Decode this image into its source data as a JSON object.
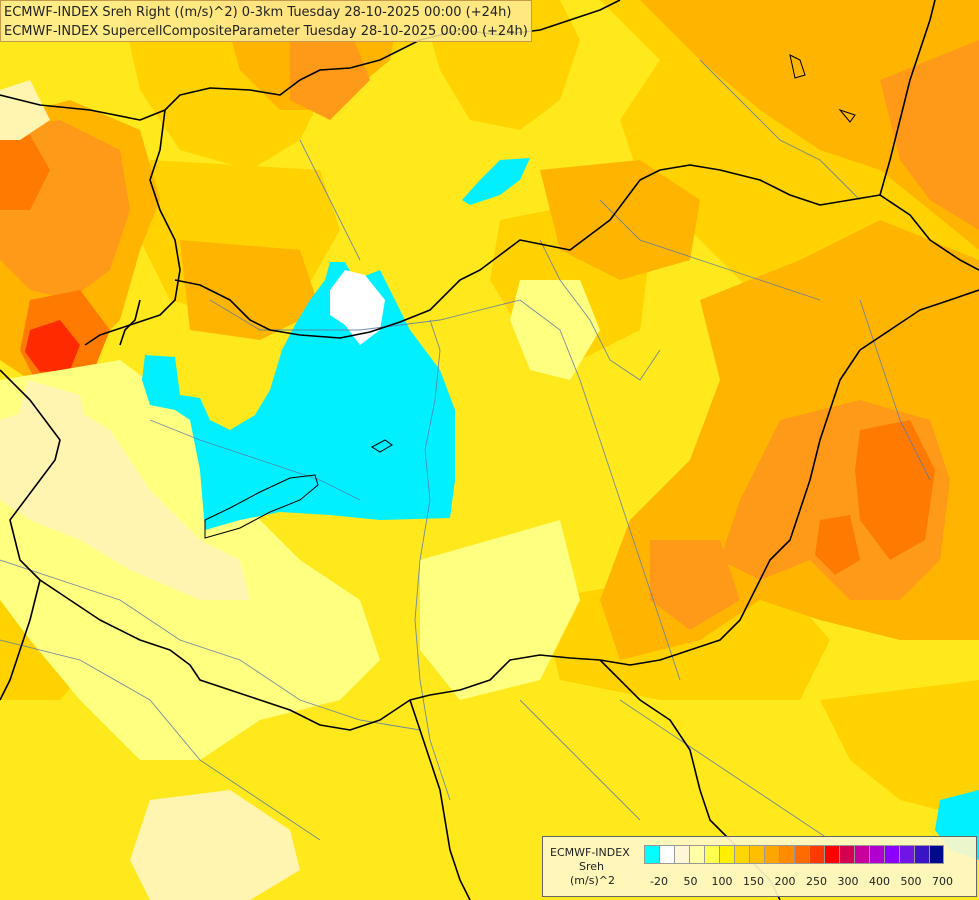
{
  "header": {
    "line1": "ECMWF-INDEX Sreh Right ((m/s)^2) 0-3km Tuesday 28-10-2025 00:00 (+24h)",
    "line2": "ECMWF-INDEX SupercellCompositeParameter Tuesday 28-10-2025 00:00 (+24h)"
  },
  "legend": {
    "title": "ECMWF-INDEX",
    "var": "Sreh",
    "unit": "(m/s)^2",
    "colors": [
      "#00ffff",
      "#ffffff",
      "#fff6d8",
      "#ffffa8",
      "#ffff50",
      "#ffef00",
      "#ffd700",
      "#ffbf00",
      "#ffa500",
      "#ff8c00",
      "#ff6b00",
      "#ff3a00",
      "#ff0000",
      "#d40050",
      "#c8009c",
      "#b000d0",
      "#8c00ff",
      "#6f16e5",
      "#3c14c8",
      "#000a8c"
    ],
    "ticks": [
      "-20",
      "50",
      "100",
      "150",
      "200",
      "250",
      "300",
      "400",
      "500",
      "700"
    ]
  },
  "map": {
    "colors": {
      "cyan": "#00f0ff",
      "white": "#ffffff",
      "paleyellow": "#fff4b0",
      "lightyellow": "#ffff80",
      "yellow": "#ffe81c",
      "gold": "#ffd200",
      "amber": "#ffb400",
      "orange": "#ff9a18",
      "darkorange": "#ff7a00",
      "red": "#ff2a00",
      "border": "#000000",
      "river": "#5a7aaa"
    }
  }
}
